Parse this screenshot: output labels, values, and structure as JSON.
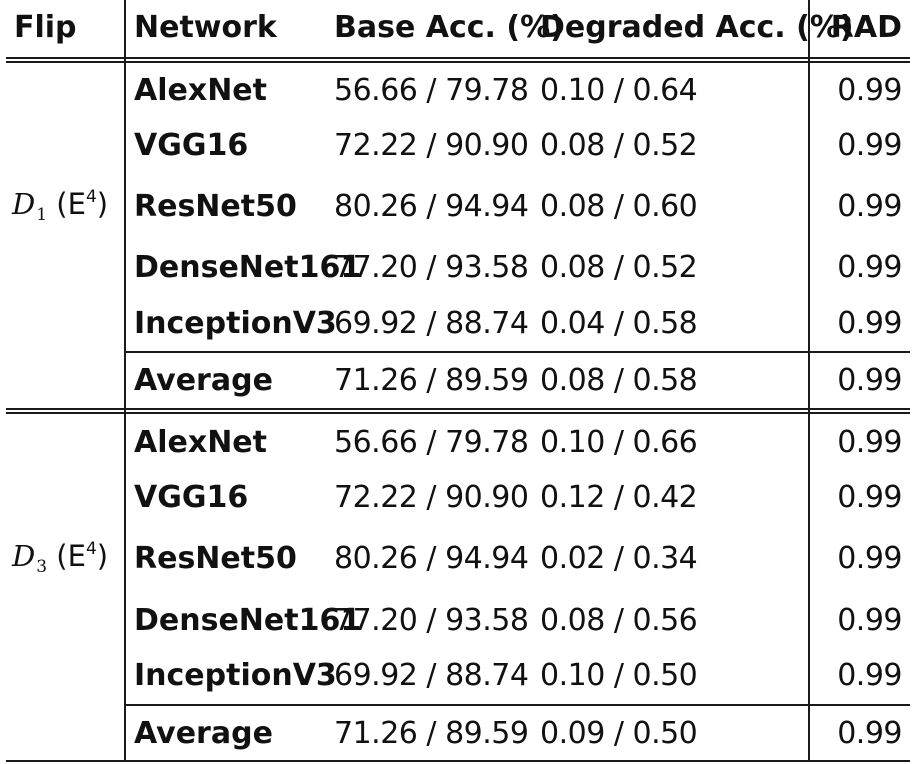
{
  "columns": {
    "flip": "Flip",
    "network": "Network",
    "base_acc": "Base Acc. (%)",
    "degraded_acc": "Degraded Acc. (%)",
    "rad": "RAD"
  },
  "groups": [
    {
      "symbol": "D",
      "subscript": "1",
      "open_paren": " (E",
      "superscript": "4",
      "close_paren": ")",
      "rows": [
        {
          "network": "AlexNet",
          "base": "56.66 / 79.78",
          "degraded": "0.10 / 0.64",
          "rad": "0.99"
        },
        {
          "network": "VGG16",
          "base": "72.22 / 90.90",
          "degraded": "0.08 / 0.52",
          "rad": "0.99"
        },
        {
          "network": "ResNet50",
          "base": "80.26 / 94.94",
          "degraded": "0.08 / 0.60",
          "rad": "0.99"
        },
        {
          "network": "DenseNet161",
          "base": "77.20 / 93.58",
          "degraded": "0.08 / 0.52",
          "rad": "0.99"
        },
        {
          "network": "InceptionV3",
          "base": "69.92 / 88.74",
          "degraded": "0.04 / 0.58",
          "rad": "0.99"
        }
      ],
      "average": {
        "network": "Average",
        "base": "71.26 / 89.59",
        "degraded": "0.08 / 0.58",
        "rad": "0.99"
      }
    },
    {
      "symbol": "D",
      "subscript": "3",
      "open_paren": " (E",
      "superscript": "4",
      "close_paren": ")",
      "rows": [
        {
          "network": "AlexNet",
          "base": "56.66 / 79.78",
          "degraded": "0.10 / 0.66",
          "rad": "0.99"
        },
        {
          "network": "VGG16",
          "base": "72.22 / 90.90",
          "degraded": "0.12 / 0.42",
          "rad": "0.99"
        },
        {
          "network": "ResNet50",
          "base": "80.26 / 94.94",
          "degraded": "0.02 / 0.34",
          "rad": "0.99"
        },
        {
          "network": "DenseNet161",
          "base": "77.20 / 93.58",
          "degraded": "0.08 / 0.56",
          "rad": "0.99"
        },
        {
          "network": "InceptionV3",
          "base": "69.92 / 88.74",
          "degraded": "0.10 / 0.50",
          "rad": "0.99"
        }
      ],
      "average": {
        "network": "Average",
        "base": "71.26 / 89.59",
        "degraded": "0.09 / 0.50",
        "rad": "0.99"
      }
    }
  ]
}
